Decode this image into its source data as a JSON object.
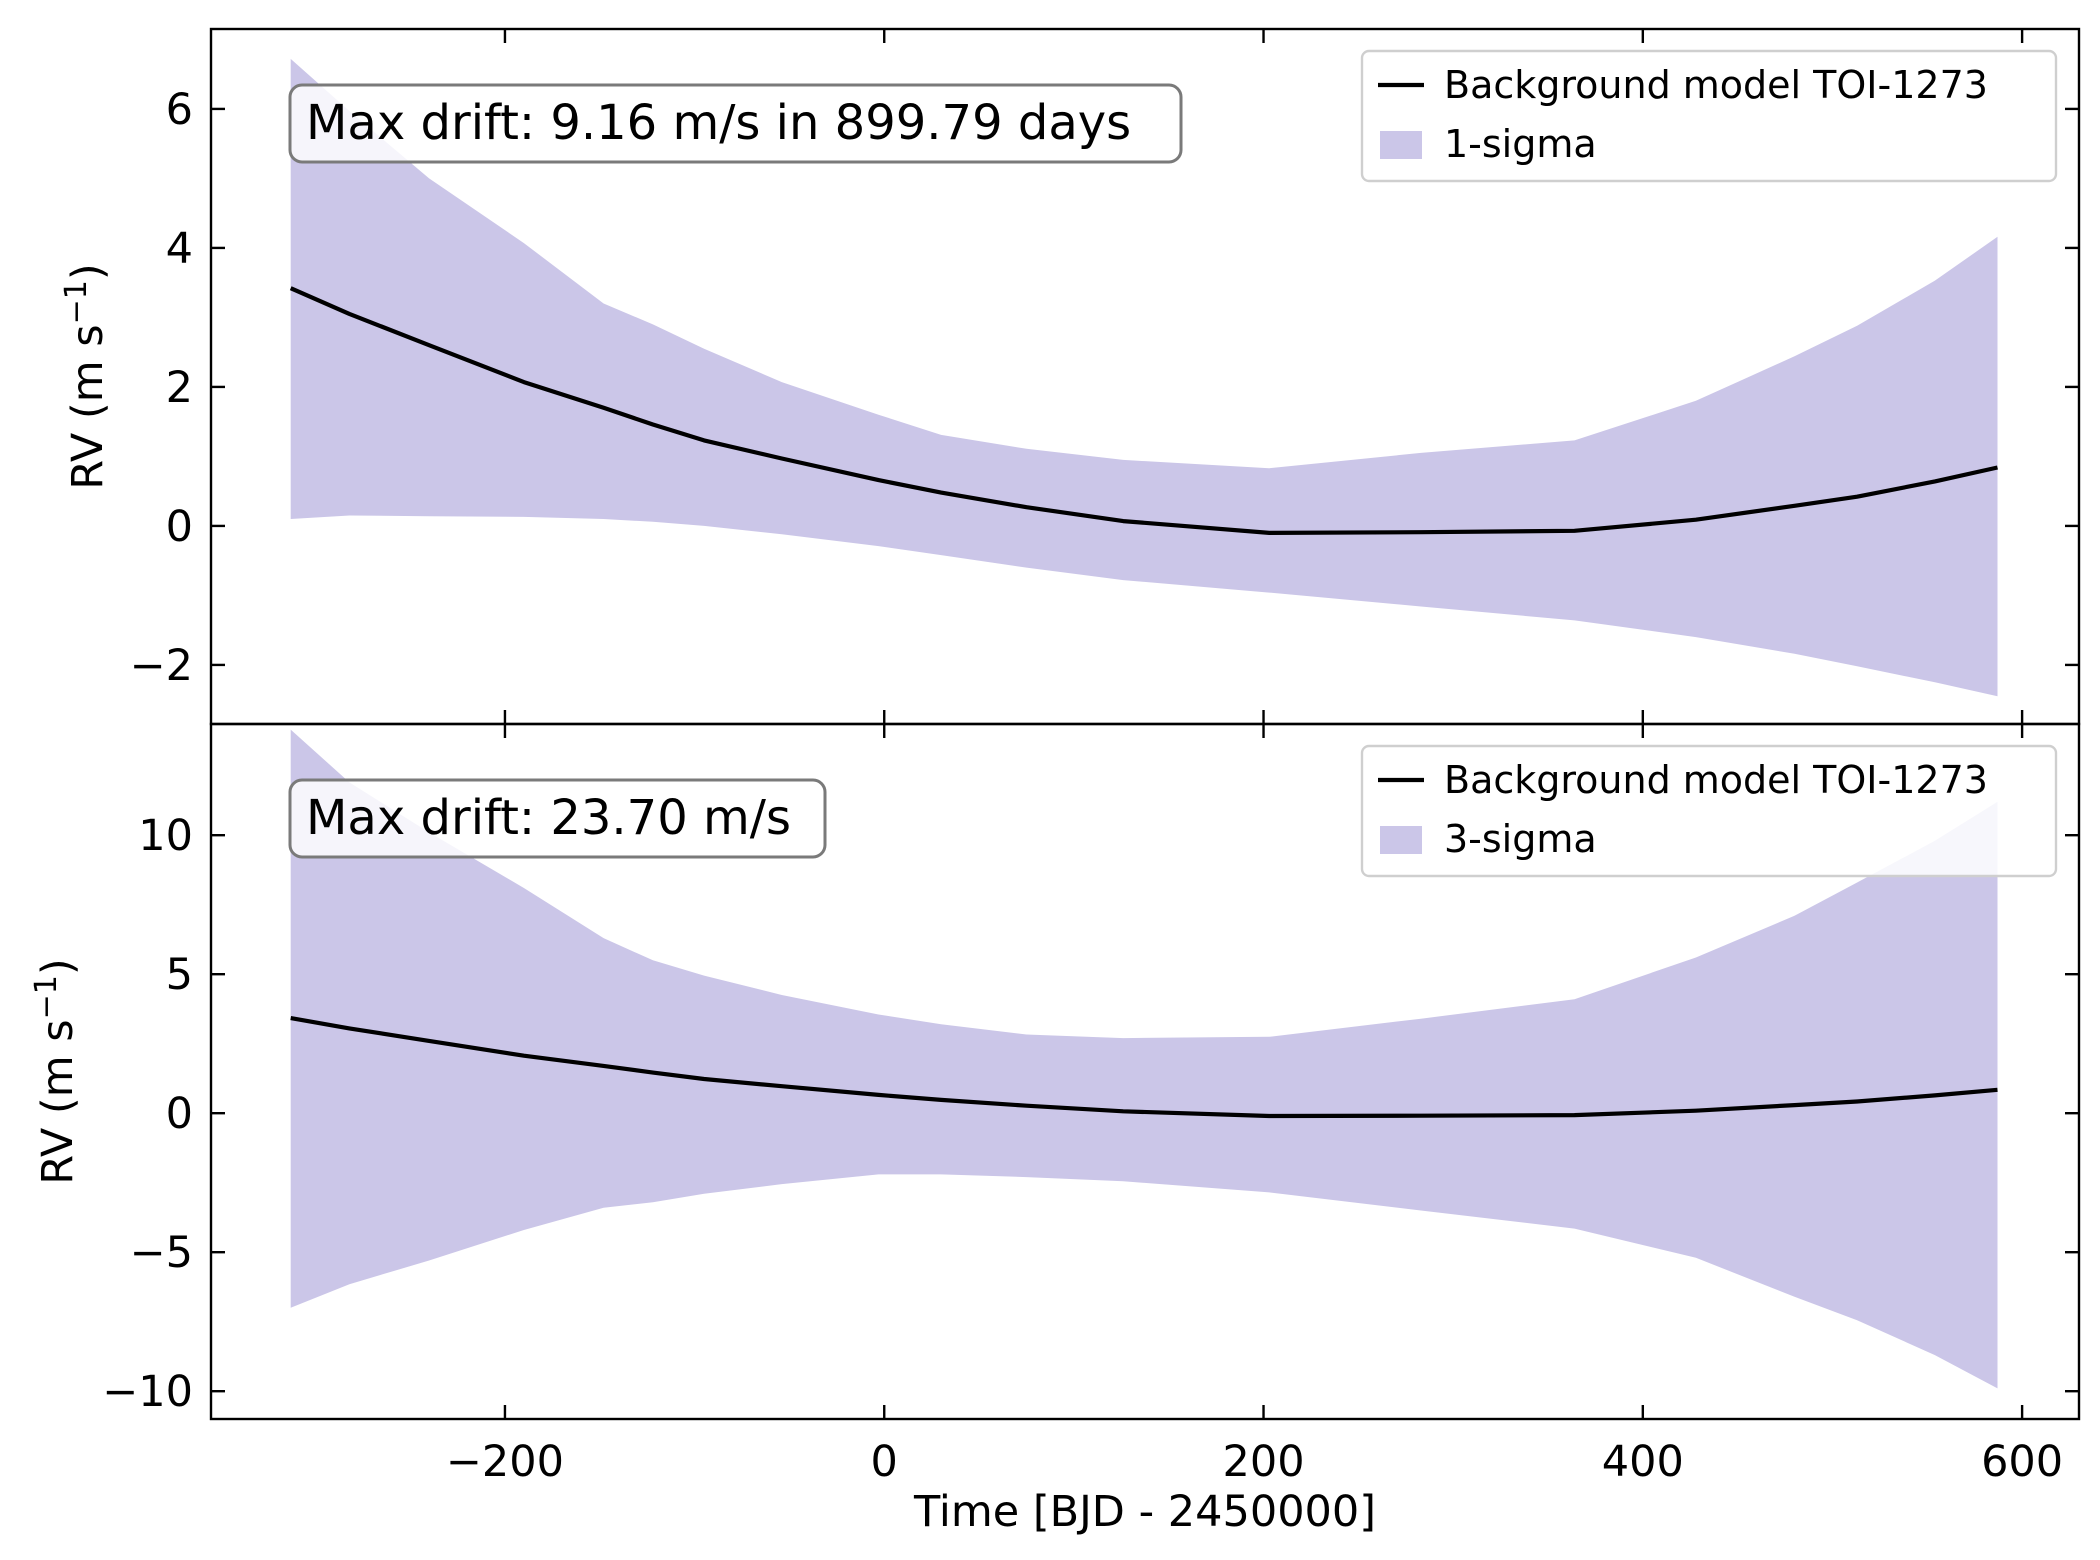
{
  "chart_data": [
    {
      "type": "line",
      "panel": "top",
      "ylabel": "RV (m s",
      "ylabel_sup": "−1",
      "ylabel_close": ")",
      "xlim": [
        -355,
        630
      ],
      "ylim": [
        -2.85,
        7.15
      ],
      "xticks": [
        -200,
        0,
        200,
        400,
        600
      ],
      "xtick_labels": [
        "",
        "",
        "",
        "",
        ""
      ],
      "yticks": [
        -2,
        0,
        2,
        4,
        6
      ],
      "ytick_labels": [
        "−2",
        "0",
        "2",
        "4",
        "6"
      ],
      "annotation": "Max drift: 9.16 m/s in 899.79 days",
      "legend": {
        "position": "top-right",
        "line_label": "Background model TOI-1273",
        "band_label": "1-sigma"
      },
      "series": [
        {
          "name": "Background model TOI-1273",
          "x": [
            -313,
            -282,
            -240,
            -190,
            -148,
            -122,
            -95,
            -54,
            -3,
            30,
            75,
            126,
            203,
            283,
            364,
            428,
            480,
            513,
            554,
            587
          ],
          "y": [
            3.42,
            3.05,
            2.6,
            2.07,
            1.7,
            1.46,
            1.23,
            0.97,
            0.66,
            0.48,
            0.27,
            0.07,
            -0.1,
            -0.09,
            -0.07,
            0.09,
            0.29,
            0.42,
            0.64,
            0.84
          ]
        }
      ],
      "band": {
        "name": "1-sigma",
        "x": [
          -313,
          -282,
          -240,
          -190,
          -148,
          -122,
          -95,
          -54,
          -3,
          30,
          75,
          126,
          203,
          283,
          364,
          428,
          480,
          513,
          554,
          587
        ],
        "upper": [
          6.72,
          5.97,
          5.0,
          4.07,
          3.2,
          2.9,
          2.55,
          2.07,
          1.6,
          1.31,
          1.11,
          0.95,
          0.83,
          1.05,
          1.23,
          1.8,
          2.44,
          2.88,
          3.53,
          4.16
        ],
        "lower": [
          0.1,
          0.15,
          0.14,
          0.13,
          0.1,
          0.06,
          0.0,
          -0.12,
          -0.29,
          -0.42,
          -0.6,
          -0.78,
          -0.96,
          -1.16,
          -1.36,
          -1.6,
          -1.84,
          -2.02,
          -2.25,
          -2.45
        ]
      }
    },
    {
      "type": "line",
      "panel": "bottom",
      "ylabel": "RV (m s",
      "ylabel_sup": "−1",
      "ylabel_close": ")",
      "xlabel": "Time [BJD - 2450000]",
      "xlim": [
        -355,
        630
      ],
      "ylim": [
        -11.0,
        14.0
      ],
      "xticks": [
        -200,
        0,
        200,
        400,
        600
      ],
      "xtick_labels": [
        "−200",
        "0",
        "200",
        "400",
        "600"
      ],
      "yticks": [
        -10,
        -5,
        0,
        5,
        10
      ],
      "ytick_labels": [
        "−10",
        "−5",
        "0",
        "5",
        "10"
      ],
      "annotation": "Max drift: 23.70 m/s",
      "legend": {
        "position": "top-right",
        "line_label": "Background model TOI-1273",
        "band_label": "3-sigma"
      },
      "series": [
        {
          "name": "Background model TOI-1273",
          "x": [
            -313,
            -282,
            -240,
            -190,
            -148,
            -122,
            -95,
            -54,
            -3,
            30,
            75,
            126,
            203,
            283,
            364,
            428,
            480,
            513,
            554,
            587
          ],
          "y": [
            3.42,
            3.05,
            2.6,
            2.07,
            1.7,
            1.46,
            1.23,
            0.97,
            0.66,
            0.48,
            0.27,
            0.07,
            -0.1,
            -0.09,
            -0.07,
            0.09,
            0.29,
            0.42,
            0.64,
            0.84
          ]
        }
      ],
      "band": {
        "name": "3-sigma",
        "x": [
          -313,
          -282,
          -240,
          -190,
          -148,
          -122,
          -95,
          -54,
          -3,
          30,
          75,
          126,
          203,
          283,
          364,
          428,
          480,
          513,
          554,
          587
        ],
        "upper": [
          13.8,
          11.9,
          10.1,
          8.1,
          6.3,
          5.5,
          4.95,
          4.25,
          3.55,
          3.2,
          2.83,
          2.7,
          2.75,
          3.4,
          4.1,
          5.6,
          7.1,
          8.3,
          9.8,
          11.2
        ],
        "lower": [
          -7.0,
          -6.15,
          -5.3,
          -4.2,
          -3.4,
          -3.2,
          -2.9,
          -2.55,
          -2.2,
          -2.2,
          -2.3,
          -2.45,
          -2.85,
          -3.5,
          -4.15,
          -5.2,
          -6.6,
          -7.45,
          -8.7,
          -9.9
        ]
      }
    }
  ],
  "colors": {
    "band_fill": "#cbc6e8",
    "line": "#000000",
    "legend_border": "#cfcfcf",
    "annotation_border": "#7a7a7a"
  }
}
